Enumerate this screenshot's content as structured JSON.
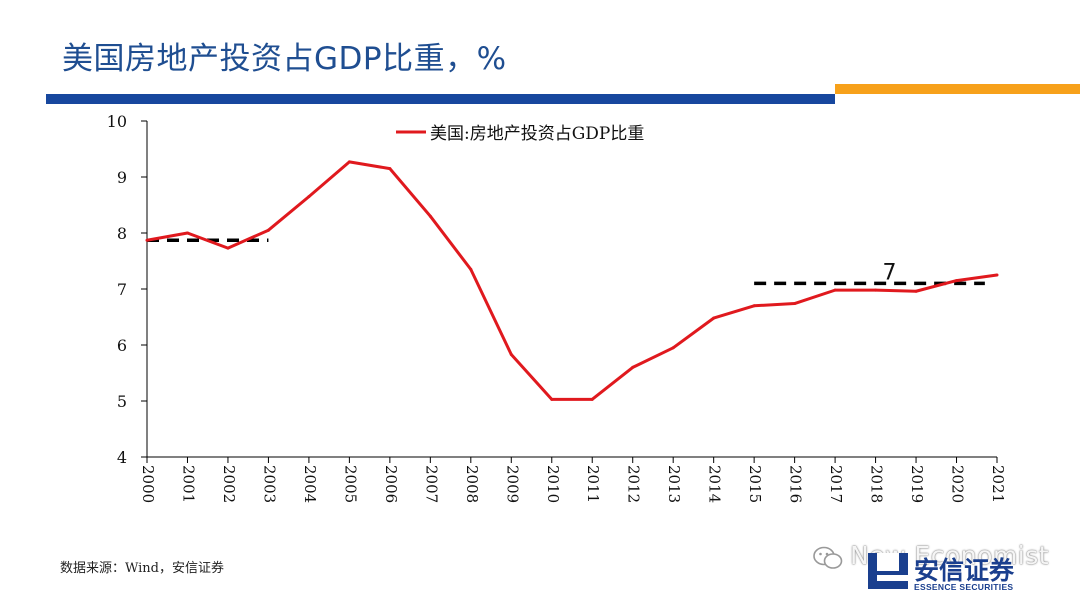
{
  "slide": {
    "title": "美国房地产投资占GDP比重，%",
    "source": "数据来源：Wind，安信证券",
    "watermark": "New Economist",
    "logo": {
      "cn": "安信证券",
      "en": "ESSENCE SECURITIES"
    },
    "colors": {
      "title": "#1f4e91",
      "bar_blue": "#17479e",
      "bar_orange": "#f7a11a"
    }
  },
  "chart_data": {
    "type": "line",
    "x": [
      "2000",
      "2001",
      "2002",
      "2003",
      "2004",
      "2005",
      "2006",
      "2007",
      "2008",
      "2009",
      "2010",
      "2011",
      "2012",
      "2013",
      "2014",
      "2015",
      "2016",
      "2017",
      "2018",
      "2019",
      "2020",
      "2021"
    ],
    "series": [
      {
        "name": "美国:房地产投资占GDP比重",
        "color": "#e0191e",
        "values": [
          7.87,
          8.0,
          7.73,
          8.05,
          8.65,
          9.27,
          9.15,
          8.3,
          7.35,
          5.83,
          5.03,
          5.03,
          5.6,
          5.95,
          6.48,
          6.7,
          6.74,
          6.98,
          6.98,
          6.96,
          7.15,
          7.25
        ]
      }
    ],
    "reference_lines": [
      {
        "from": "2000",
        "to": "2003",
        "value": 7.87,
        "style": "dashed",
        "color": "#000000",
        "label": ""
      },
      {
        "from": "2015",
        "to": "2020.7",
        "value": 7.1,
        "style": "dashed",
        "color": "#000000",
        "label": "7"
      }
    ],
    "ylim": [
      4,
      10
    ],
    "yticks": [
      4,
      5,
      6,
      7,
      8,
      9,
      10
    ],
    "grid": false,
    "legend": "top-center",
    "xlabel": "",
    "ylabel": ""
  }
}
